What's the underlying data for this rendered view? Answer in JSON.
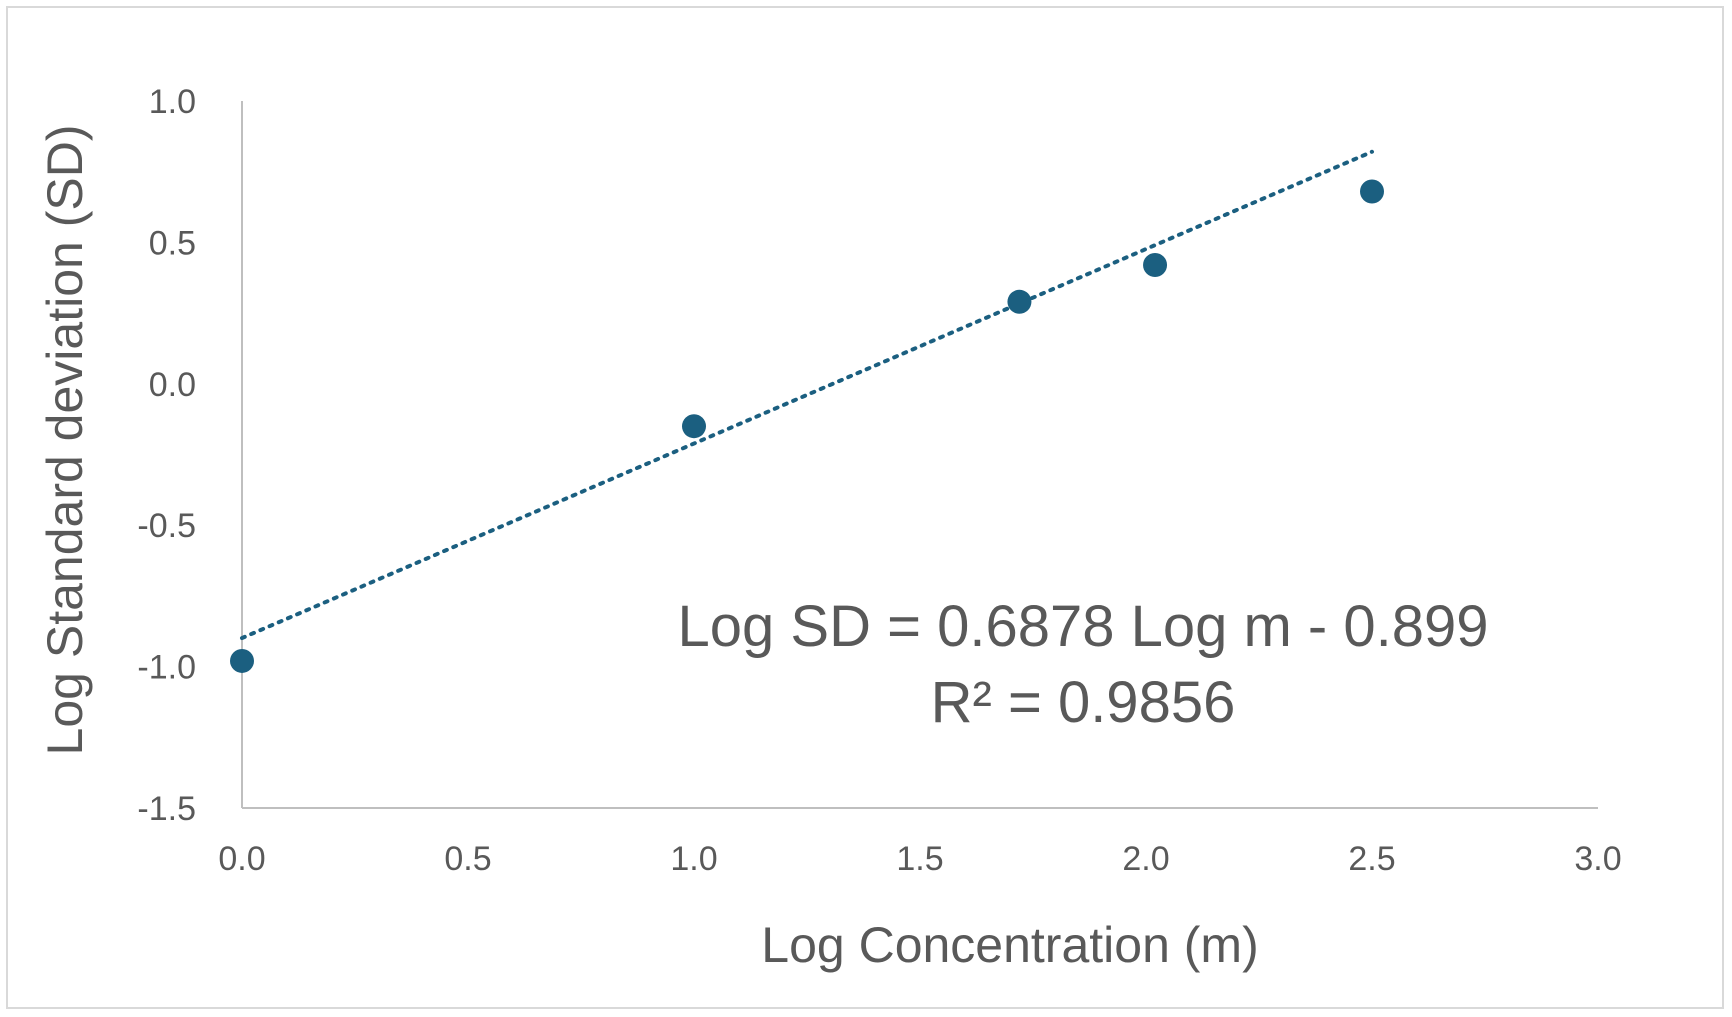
{
  "chart_data": {
    "type": "scatter",
    "xlabel": "Log Concentration (m)",
    "ylabel": "Log Standard deviation (SD)",
    "xlim": [
      0.0,
      3.0
    ],
    "ylim": [
      -1.5,
      1.0
    ],
    "x_ticks": [
      "0.0",
      "0.5",
      "1.0",
      "1.5",
      "2.0",
      "2.5",
      "3.0"
    ],
    "y_ticks": [
      "1.0",
      "0.5",
      "0.0",
      "-0.5",
      "-1.0",
      "-1.5"
    ],
    "grid": false,
    "legend": "none",
    "series": [
      {
        "color": "#1b5f80",
        "x": [
          0.0,
          1.0,
          1.72,
          2.02,
          2.5
        ],
        "y": [
          -0.98,
          -0.15,
          0.29,
          0.42,
          0.68
        ]
      }
    ],
    "trendline": {
      "type": "linear",
      "style": "dotted",
      "color": "#1b5f80",
      "slope": 0.6878,
      "intercept": -0.899,
      "x_range": [
        0.0,
        2.5
      ]
    },
    "annotations": {
      "equation": "Log SD = 0.6878 Log m - 0.899",
      "r_squared": "R² = 0.9856"
    }
  }
}
